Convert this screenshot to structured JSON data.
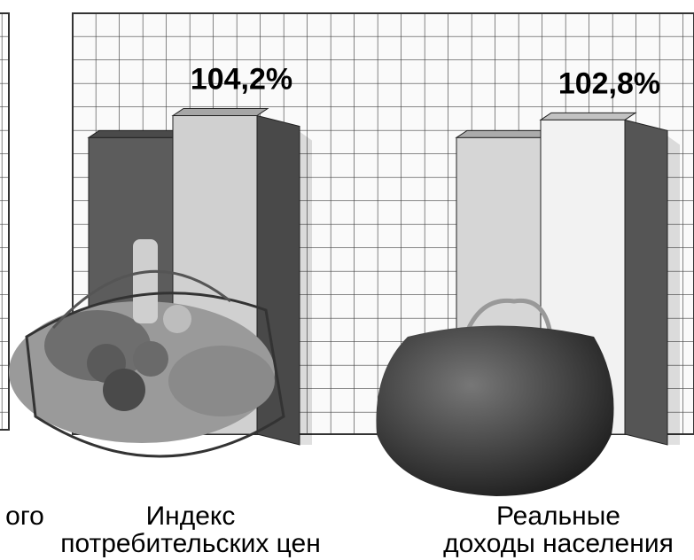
{
  "chart_data": {
    "type": "bar",
    "categories": [
      [
        "ого"
      ],
      [
        "Индекс",
        "потребительских цен"
      ],
      [
        "Реальные",
        "доходы населения"
      ]
    ],
    "series": [
      {
        "colors": [
          null,
          "#5c5c5c",
          "#d6d6d6"
        ],
        "values": [
          null,
          97,
          97
        ]
      },
      {
        "colors": [
          null,
          "#d0d0d0",
          "#f2f2f2"
        ],
        "values": [
          null,
          104.2,
          102.8
        ],
        "value_labels": [
          null,
          "104,2%",
          "102,8%"
        ]
      }
    ],
    "grid": true
  }
}
